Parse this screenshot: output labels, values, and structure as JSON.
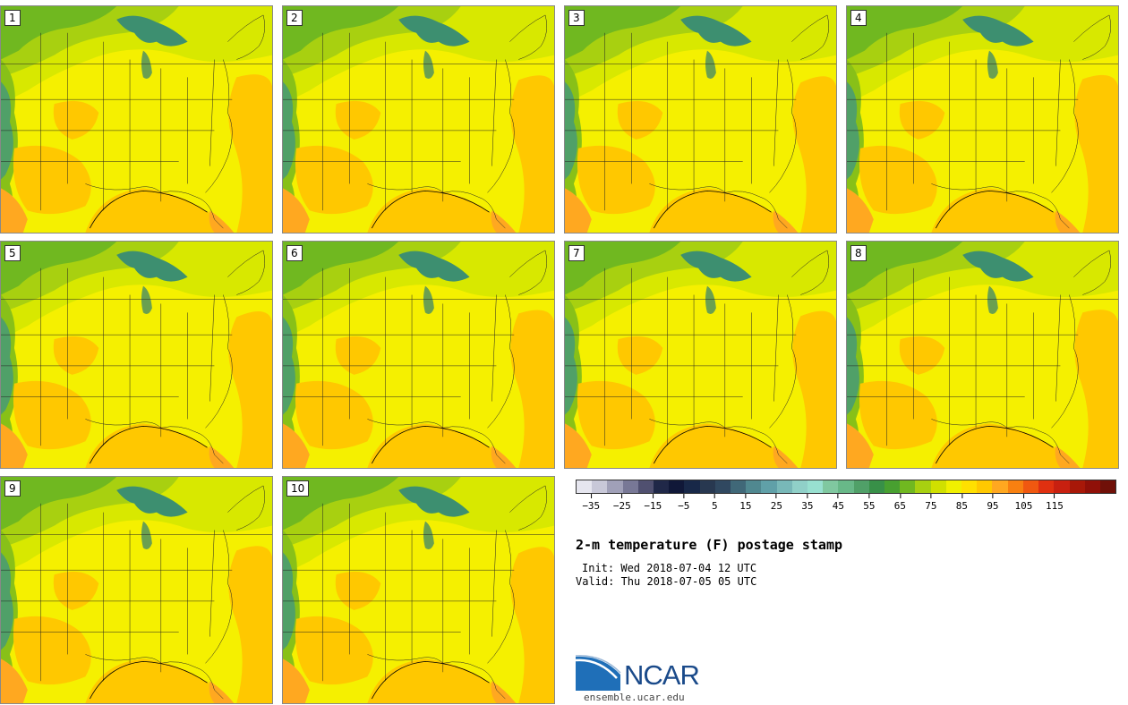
{
  "figure": {
    "title": "2-m temperature (F) postage stamp",
    "init_label": "Init: Wed 2018-07-04 12 UTC",
    "valid_label": "Valid: Thu 2018-07-05 05 UTC"
  },
  "members": [
    "1",
    "2",
    "3",
    "4",
    "5",
    "6",
    "7",
    "8",
    "9",
    "10"
  ],
  "colorbar": {
    "colors": [
      "#e6e6ef",
      "#c8c8d8",
      "#a0a0b8",
      "#787896",
      "#505070",
      "#202848",
      "#101838",
      "#182848",
      "#283850",
      "#304860",
      "#406878",
      "#508890",
      "#60a0a8",
      "#78b8b8",
      "#90d0c8",
      "#98e0d0",
      "#80c8a0",
      "#68b888",
      "#50a068",
      "#389048",
      "#48a030",
      "#70b820",
      "#a8d010",
      "#d0e000",
      "#f0f000",
      "#ffe000",
      "#ffc800",
      "#ffa820",
      "#f88010",
      "#f05810",
      "#e03010",
      "#c82010",
      "#a81808",
      "#901008",
      "#701008"
    ],
    "tick_labels": [
      "−35",
      "−25",
      "−15",
      "−5",
      "5",
      "15",
      "25",
      "35",
      "45",
      "55",
      "65",
      "75",
      "85",
      "95",
      "105",
      "115"
    ]
  },
  "logo": {
    "text": "NCAR",
    "url": "ensemble.ucar.edu"
  }
}
